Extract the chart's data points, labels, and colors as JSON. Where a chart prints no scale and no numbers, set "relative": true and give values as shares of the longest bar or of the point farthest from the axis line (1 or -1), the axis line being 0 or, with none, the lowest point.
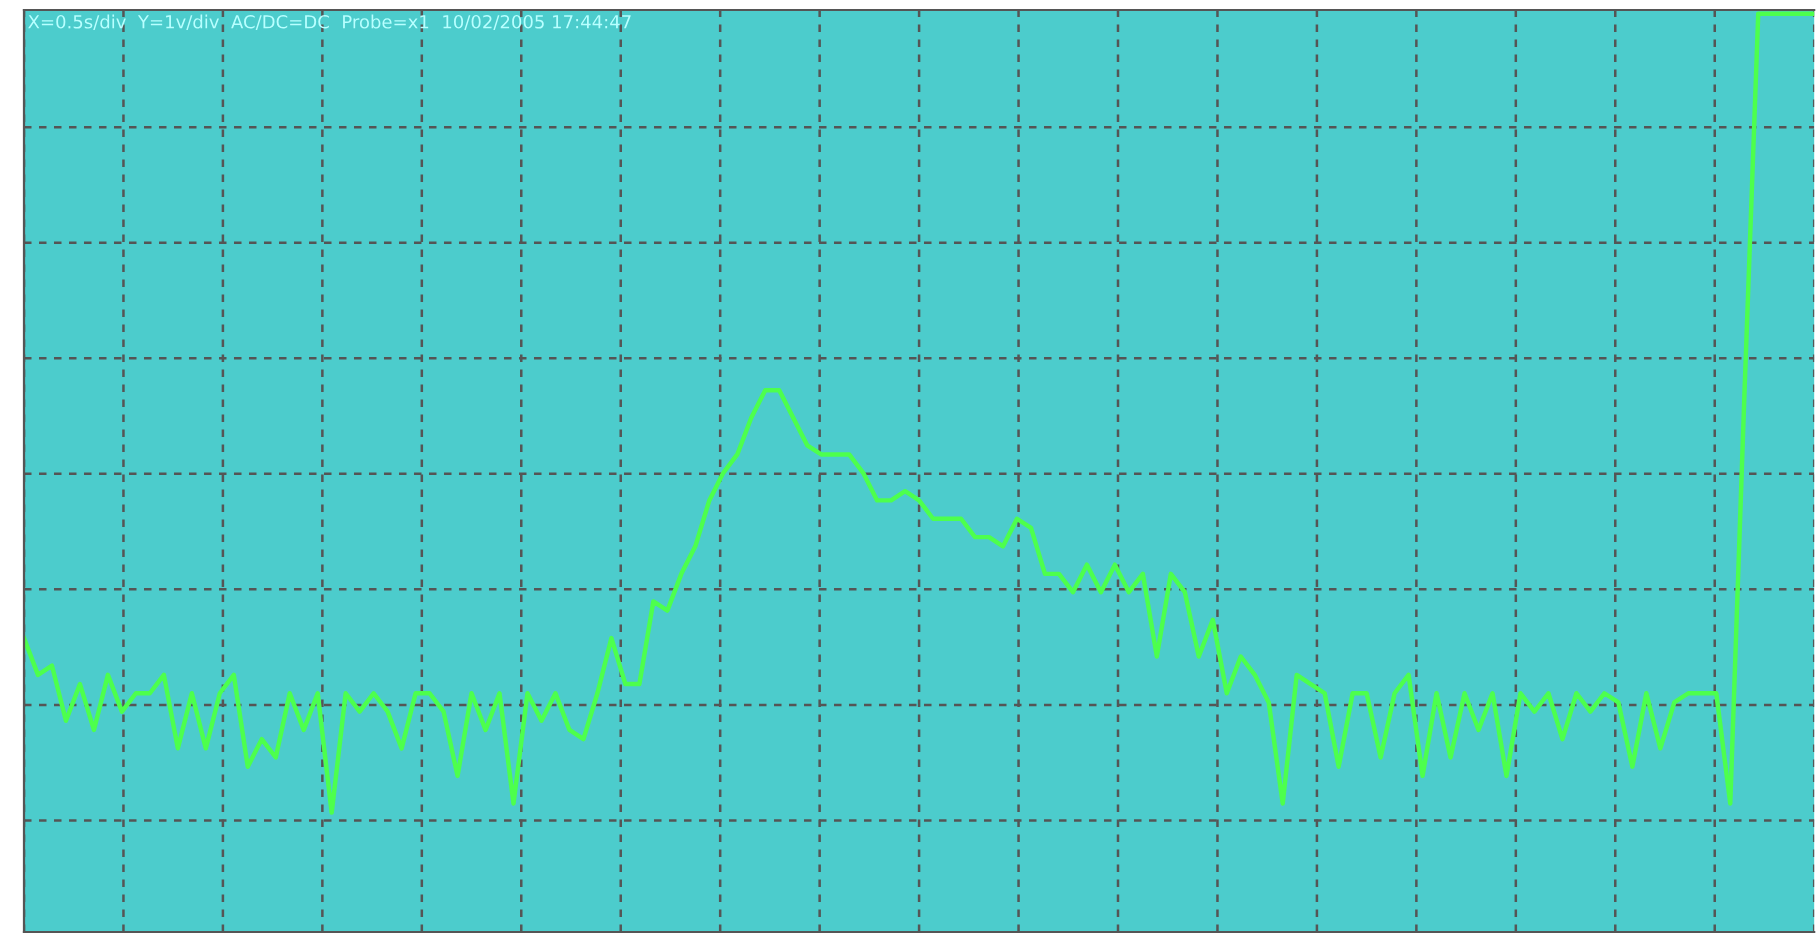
{
  "chart_data": {
    "type": "line",
    "title": "X=0.5s/div  Y=1v/div  AC/DC=DC  Probe=x1  10/02/2005 17:44:47",
    "relative": true,
    "grid": true,
    "tick_labels": false,
    "legend": false,
    "categories": [
      null,
      null,
      null,
      null,
      null,
      null,
      null,
      null,
      null,
      null,
      null,
      null,
      null,
      null,
      null,
      null,
      null,
      null,
      null,
      null,
      null,
      null,
      null,
      null,
      null,
      null,
      null,
      null,
      null,
      null,
      null,
      null,
      null,
      null,
      null,
      null,
      null,
      null,
      null,
      null,
      null,
      null,
      null,
      null,
      null,
      null,
      null,
      null,
      null,
      null,
      null,
      null,
      null,
      null,
      null,
      null,
      null,
      null,
      null,
      null,
      null,
      null,
      null,
      null,
      null,
      null,
      null,
      null,
      null,
      null,
      null,
      null,
      null,
      null,
      null,
      null,
      null,
      null,
      null,
      null,
      null,
      null,
      null,
      null,
      null,
      null,
      null,
      null,
      null,
      null,
      null,
      null,
      null,
      null,
      null,
      null,
      null,
      null,
      null,
      null,
      null,
      null,
      null,
      null,
      null,
      null,
      null,
      null,
      null,
      null,
      null,
      null,
      null,
      null,
      null,
      null,
      null,
      null,
      null,
      null,
      null,
      null,
      null,
      null,
      null,
      null,
      null,
      null,
      null
    ],
    "series": [
      {
        "color": "#4dff4d",
        "values": [
          0.32,
          0.28,
          0.29,
          0.23,
          0.27,
          0.22,
          0.28,
          0.24,
          0.26,
          0.26,
          0.28,
          0.2,
          0.26,
          0.2,
          0.26,
          0.28,
          0.18,
          0.21,
          0.19,
          0.26,
          0.22,
          0.26,
          0.13,
          0.26,
          0.24,
          0.26,
          0.24,
          0.2,
          0.26,
          0.26,
          0.24,
          0.17,
          0.26,
          0.22,
          0.26,
          0.14,
          0.26,
          0.23,
          0.26,
          0.22,
          0.21,
          0.26,
          0.32,
          0.27,
          0.27,
          0.36,
          0.35,
          0.39,
          0.42,
          0.47,
          0.5,
          0.52,
          0.56,
          0.59,
          0.59,
          0.56,
          0.53,
          0.52,
          0.52,
          0.52,
          0.5,
          0.47,
          0.47,
          0.48,
          0.47,
          0.45,
          0.45,
          0.45,
          0.43,
          0.43,
          0.42,
          0.45,
          0.44,
          0.39,
          0.39,
          0.37,
          0.4,
          0.37,
          0.4,
          0.37,
          0.39,
          0.3,
          0.39,
          0.37,
          0.3,
          0.34,
          0.26,
          0.3,
          0.28,
          0.25,
          0.14,
          0.28,
          0.27,
          0.26,
          0.18,
          0.26,
          0.26,
          0.19,
          0.26,
          0.28,
          0.17,
          0.26,
          0.19,
          0.26,
          0.22,
          0.26,
          0.17,
          0.26,
          0.24,
          0.26,
          0.21,
          0.26,
          0.24,
          0.26,
          0.25,
          0.18,
          0.26,
          0.2,
          0.25,
          0.26,
          0.26,
          0.26,
          0.14,
          0.58,
          1,
          1,
          1,
          1,
          1
        ]
      }
    ]
  }
}
